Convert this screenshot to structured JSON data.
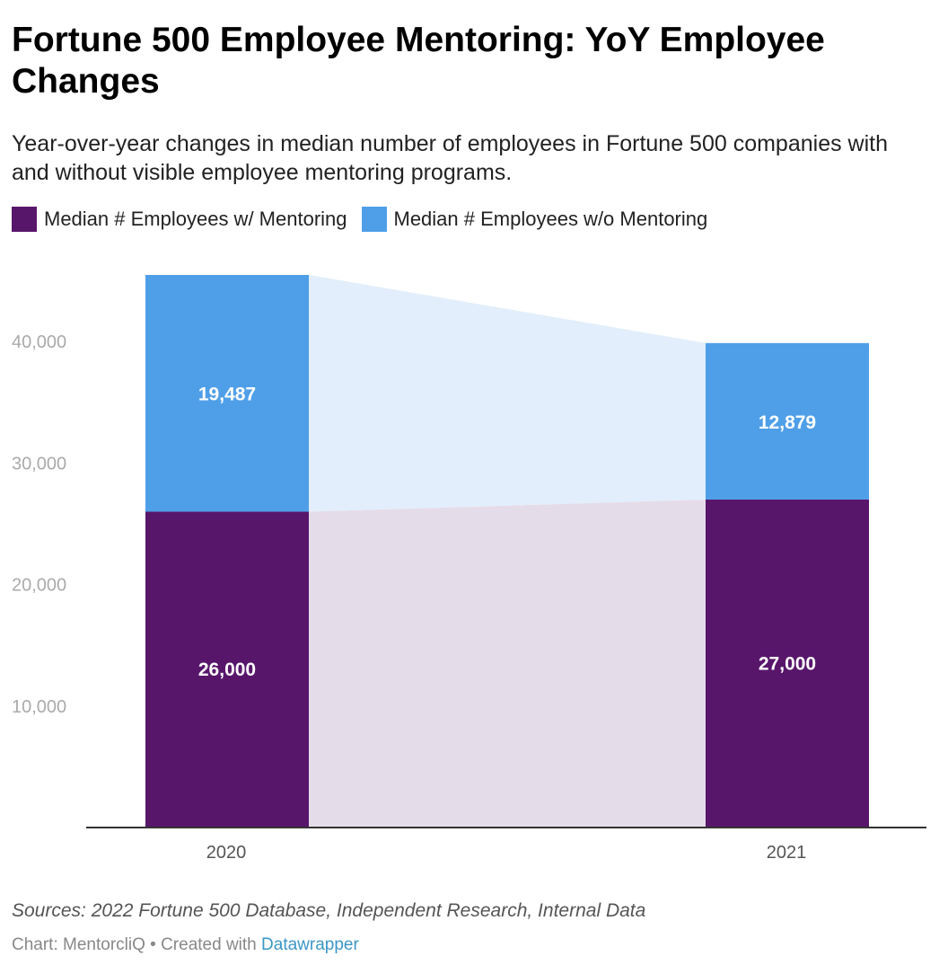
{
  "header": {
    "title": "Fortune 500 Employee Mentoring: YoY Employee Changes",
    "subtitle": "Year-over-year changes in median number of employees in Fortune 500 companies with and without visible employee mentoring programs."
  },
  "footer": {
    "source": "Sources: 2022 Fortune 500 Database, Independent Research, Internal Data",
    "credit_prefix": "Chart: MentorcliQ • Created with ",
    "credit_link": "Datawrapper"
  },
  "colors": {
    "with_mentoring": "#58166b",
    "without_mentoring": "#4f9fe8",
    "with_mentoring_band": "#e5dcea",
    "without_mentoring_band": "#e2eefb"
  },
  "chart_data": {
    "type": "bar",
    "stacked": true,
    "categories": [
      "2020",
      "2021"
    ],
    "series": [
      {
        "name": "Median # Employees w/ Mentoring",
        "values": [
          26000,
          27000
        ],
        "labels": [
          "26,000",
          "27,000"
        ]
      },
      {
        "name": "Median # Employees w/o Mentoring",
        "values": [
          19487,
          12879
        ],
        "labels": [
          "19,487",
          "12,879"
        ]
      }
    ],
    "yticks": [
      10000,
      20000,
      30000,
      40000
    ],
    "ytick_labels": [
      "10,000",
      "20,000",
      "30,000",
      "40,000"
    ],
    "ylim": [
      0,
      45487
    ],
    "title": "Fortune 500 Employee Mentoring: YoY Employee Changes",
    "xlabel": "",
    "ylabel": ""
  }
}
